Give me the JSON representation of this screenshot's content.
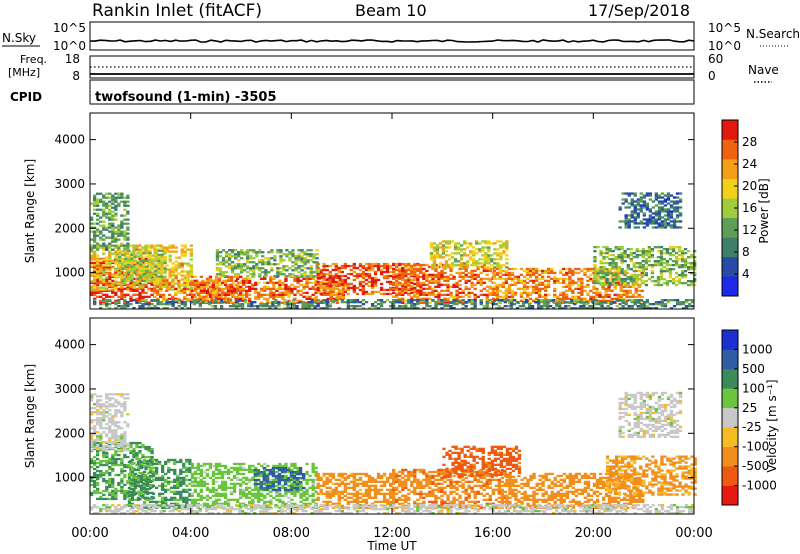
{
  "header": {
    "station": "Rankin Inlet (fitACF)",
    "beam": "Beam 10",
    "date": "17/Sep/2018"
  },
  "top_strips": {
    "nsky_label": "N.Sky",
    "nsky_ticks": [
      "10^5",
      "10^0"
    ],
    "nsearch_label": "N.Search",
    "nsearch_ticks": [
      "10^5",
      "10^0"
    ],
    "freq_label_line1": "Freq.",
    "freq_label_line2": "[MHz]",
    "freq_ticks": [
      "18",
      "8"
    ],
    "nave_label": "Nave",
    "nave_ticks": [
      "60",
      "0"
    ],
    "cpid_label": "CPID",
    "cpid_value": "twofsound (1-min) -3505"
  },
  "colors": {
    "power": [
      "#1f28e6",
      "#2a4aa8",
      "#3e7f6a",
      "#5f9e55",
      "#9fcc3a",
      "#f3d11a",
      "#f59e17",
      "#ee6210",
      "#e3190f"
    ],
    "velocity": [
      "#e61a10",
      "#ee5a10",
      "#f28f1c",
      "#f5bc23",
      "#c8c8c8",
      "#6ac43e",
      "#3b8a5c",
      "#2f5da3",
      "#1d2fd0"
    ]
  },
  "chart_data": [
    {
      "type": "heatmap",
      "panel": "power",
      "xlabel": "Time UT",
      "ylabel": "Slant Range [km]",
      "colorbar_label": "Power [dB]",
      "x_ticks": [
        "00:00",
        "04:00",
        "08:00",
        "12:00",
        "16:00",
        "20:00",
        "00:00"
      ],
      "y_ticks": [
        1000,
        2000,
        3000,
        4000
      ],
      "ylim": [
        180,
        4600
      ],
      "colorbar_ticks": [
        4,
        8,
        12,
        16,
        20,
        24,
        28
      ],
      "colorbar_range": [
        0,
        32
      ],
      "echo_regions": [
        {
          "t": [
            0.0,
            2.5
          ],
          "r": [
            300,
            1300
          ],
          "level": 30
        },
        {
          "t": [
            0.0,
            4.0
          ],
          "r": [
            600,
            1600
          ],
          "level": 20
        },
        {
          "t": [
            0.0,
            1.5
          ],
          "r": [
            1500,
            2800
          ],
          "level": 12
        },
        {
          "t": [
            1.0,
            3.0
          ],
          "r": [
            800,
            1500
          ],
          "level": 16
        },
        {
          "t": [
            2.5,
            6.0
          ],
          "r": [
            300,
            800
          ],
          "level": 24
        },
        {
          "t": [
            4.0,
            10.0
          ],
          "r": [
            300,
            900
          ],
          "level": 26
        },
        {
          "t": [
            5.0,
            9.0
          ],
          "r": [
            900,
            1500
          ],
          "level": 14
        },
        {
          "t": [
            9.0,
            13.0
          ],
          "r": [
            500,
            1200
          ],
          "level": 27
        },
        {
          "t": [
            12.0,
            16.0
          ],
          "r": [
            300,
            1200
          ],
          "level": 26
        },
        {
          "t": [
            13.5,
            16.5
          ],
          "r": [
            1100,
            1700
          ],
          "level": 18
        },
        {
          "t": [
            16.0,
            22.0
          ],
          "r": [
            300,
            1100
          ],
          "level": 24
        },
        {
          "t": [
            20.0,
            24.0
          ],
          "r": [
            700,
            1600
          ],
          "level": 14
        },
        {
          "t": [
            21.0,
            23.5
          ],
          "r": [
            2000,
            2800
          ],
          "level": 8
        },
        {
          "t": [
            0.0,
            24.0
          ],
          "r": [
            180,
            400
          ],
          "level": 10
        }
      ]
    },
    {
      "type": "heatmap",
      "panel": "velocity",
      "xlabel": "Time UT",
      "ylabel": "Slant Range [km]",
      "colorbar_label": "Velocity [m s^-1]",
      "x_ticks": [
        "00:00",
        "04:00",
        "08:00",
        "12:00",
        "16:00",
        "20:00",
        "00:00"
      ],
      "y_ticks": [
        1000,
        2000,
        3000,
        4000
      ],
      "ylim": [
        180,
        4600
      ],
      "colorbar_ticks": [
        "1000",
        "500",
        "100",
        "25",
        "-25",
        "-100",
        "-500",
        "-1000"
      ],
      "echo_regions": [
        {
          "t": [
            0.0,
            2.5
          ],
          "r": [
            500,
            1800
          ],
          "level": 100
        },
        {
          "t": [
            0.0,
            1.5
          ],
          "r": [
            1600,
            2900
          ],
          "level": 0
        },
        {
          "t": [
            1.5,
            4.0
          ],
          "r": [
            300,
            1400
          ],
          "level": 120
        },
        {
          "t": [
            4.0,
            9.0
          ],
          "r": [
            300,
            1300
          ],
          "level": 50
        },
        {
          "t": [
            6.5,
            8.5
          ],
          "r": [
            700,
            1200
          ],
          "level": 600
        },
        {
          "t": [
            9.0,
            12.0
          ],
          "r": [
            300,
            1100
          ],
          "level": -150
        },
        {
          "t": [
            12.0,
            16.5
          ],
          "r": [
            300,
            1200
          ],
          "level": -400
        },
        {
          "t": [
            14.0,
            17.0
          ],
          "r": [
            1000,
            1700
          ],
          "level": -700
        },
        {
          "t": [
            16.5,
            22.0
          ],
          "r": [
            300,
            1100
          ],
          "level": -300
        },
        {
          "t": [
            20.5,
            24.0
          ],
          "r": [
            600,
            1500
          ],
          "level": -120
        },
        {
          "t": [
            21.0,
            23.5
          ],
          "r": [
            1900,
            2900
          ],
          "level": 0
        },
        {
          "t": [
            0.0,
            24.0
          ],
          "r": [
            180,
            400
          ],
          "level": 0
        }
      ]
    }
  ]
}
